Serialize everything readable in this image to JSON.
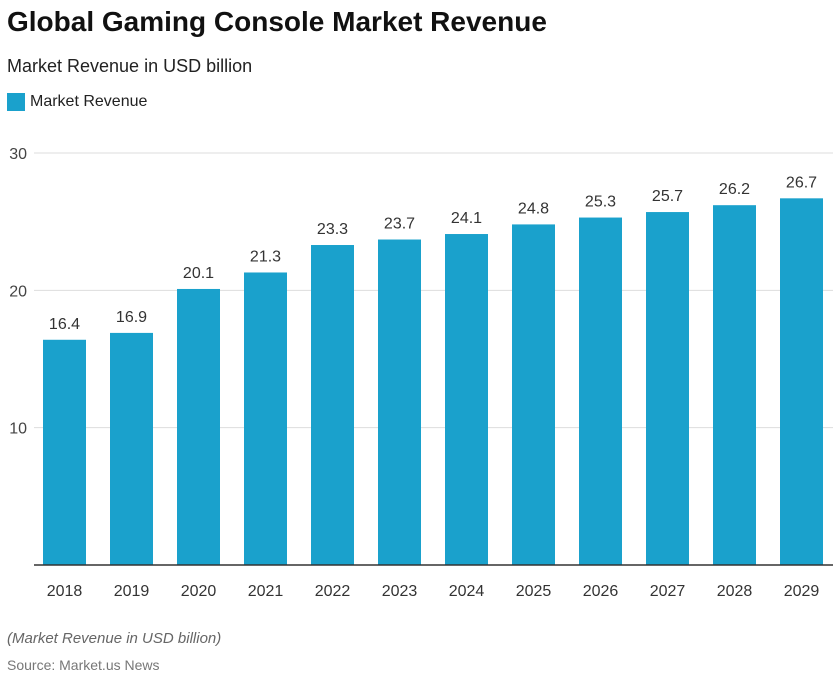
{
  "title": "Global Gaming Console Market Revenue",
  "subtitle": "Market Revenue in USD billion",
  "footnote": "(Market Revenue in USD billion)",
  "source": "Source: Market.us News",
  "chart_data": {
    "type": "bar",
    "title": "Global Gaming Console Market Revenue",
    "subtitle": "Market Revenue in USD billion",
    "categories": [
      "2018",
      "2019",
      "2020",
      "2021",
      "2022",
      "2023",
      "2024",
      "2025",
      "2026",
      "2027",
      "2028",
      "2029"
    ],
    "series": [
      {
        "name": "Market Revenue",
        "values": [
          16.4,
          16.9,
          20.1,
          21.3,
          23.3,
          23.7,
          24.1,
          24.8,
          25.3,
          25.7,
          26.2,
          26.7
        ],
        "color": "#1aa1cc"
      }
    ],
    "ylim": [
      0,
      30
    ],
    "yticks": [
      10,
      20,
      30
    ],
    "grid": true,
    "legend_placement": "top-left"
  }
}
